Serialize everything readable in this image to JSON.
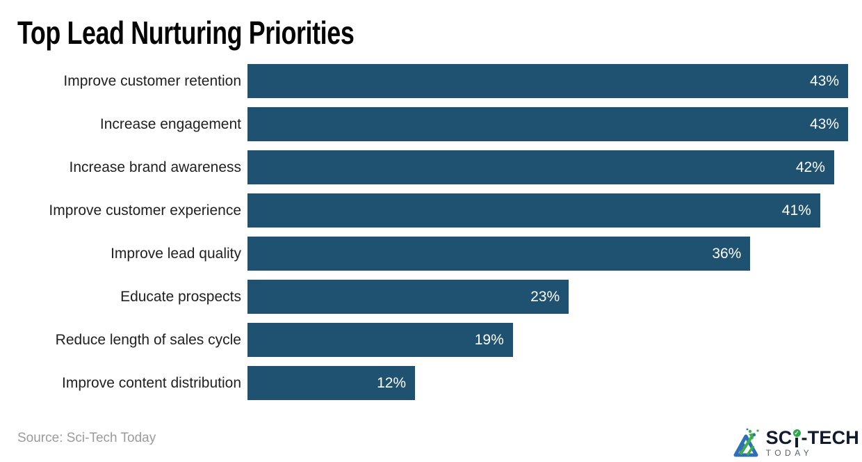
{
  "chart_data": {
    "type": "bar",
    "orientation": "horizontal",
    "title": "Top Lead Nurturing Priorities",
    "categories": [
      "Improve customer retention",
      "Increase engagement",
      "Increase brand awareness",
      "Improve customer experience",
      "Improve lead quality",
      "Educate prospects",
      "Reduce length of sales cycle",
      "Improve content distribution"
    ],
    "values": [
      43,
      43,
      42,
      41,
      36,
      23,
      19,
      12
    ],
    "value_suffix": "%",
    "xlim": [
      0,
      43
    ],
    "grid": false,
    "value_labels_position": "inside-end",
    "bar_color": "#1F5170",
    "value_label_color": "#FFFFFF"
  },
  "footer": {
    "source": "Source: Sci-Tech Today"
  },
  "logo": {
    "brand_part1": "SC",
    "brand_part2": "-TECH",
    "brand_sub": "TODAY",
    "check_glyph": "✓",
    "colors": {
      "navy": "#101B30",
      "green": "#2FA84F",
      "blue": "#2E6FB7",
      "gray": "#55606B"
    }
  }
}
